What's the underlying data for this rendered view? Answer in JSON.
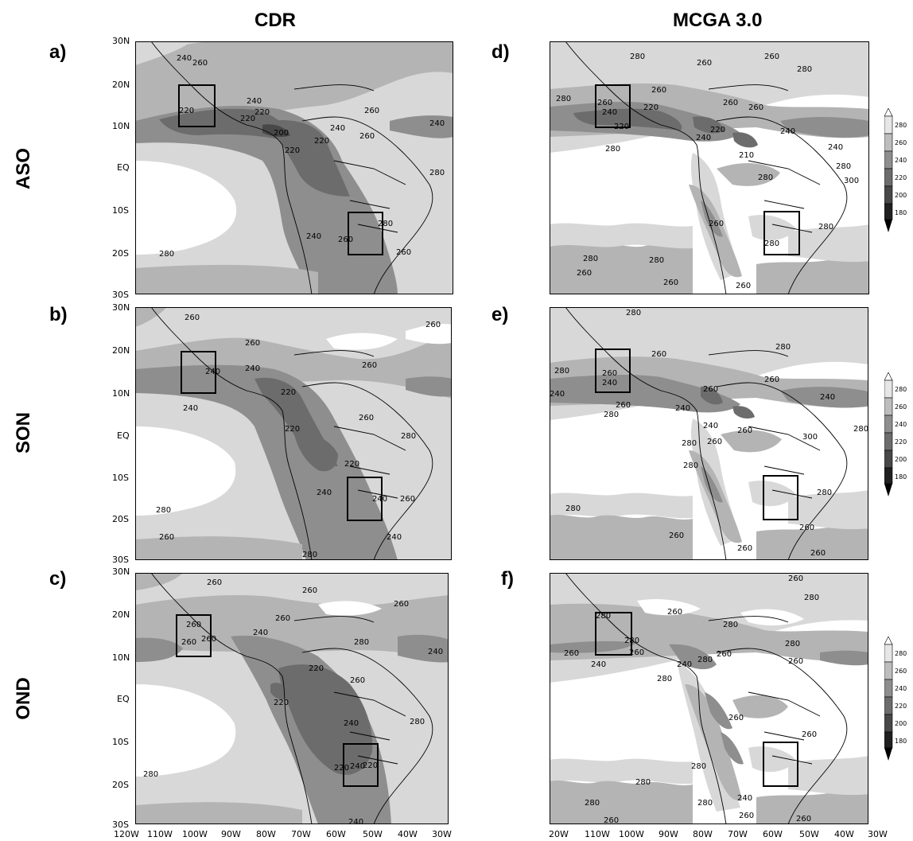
{
  "columns": [
    "CDR",
    "MCGA 3.0"
  ],
  "rows": [
    "ASO",
    "SON",
    "OND"
  ],
  "panel_labels": [
    "a)",
    "b)",
    "c)",
    "d)",
    "e)",
    "f)"
  ],
  "y_ticks": [
    "30N",
    "20N",
    "10N",
    "EQ",
    "10S",
    "20S",
    "30S"
  ],
  "x_ticks_left": [
    "120W",
    "110W",
    "100W",
    "90W",
    "80W",
    "70W",
    "60W",
    "50W",
    "40W",
    "30W"
  ],
  "x_ticks_right": [
    "20W",
    "110W",
    "100W",
    "90W",
    "80W",
    "70W",
    "60W",
    "50W",
    "40W",
    "30W"
  ],
  "colorbar_levels": [
    "280",
    "260",
    "240",
    "220",
    "200",
    "180"
  ],
  "colors": {
    "c300": "#ffffff",
    "c280": "#d8d8d8",
    "c260": "#b4b4b4",
    "c240": "#8e8e8e",
    "c220": "#6c6c6c",
    "c200": "#484848",
    "c180": "#202020"
  },
  "panels": [
    {
      "id": "a",
      "contour_labels": [
        "240",
        "260",
        "220",
        "240",
        "220",
        "220",
        "200",
        "220",
        "220",
        "240",
        "260",
        "240",
        "280",
        "240",
        "260",
        "280",
        "260",
        "280",
        "260"
      ]
    },
    {
      "id": "b",
      "contour_labels": [
        "260",
        "260",
        "260",
        "240",
        "240",
        "260",
        "220",
        "240",
        "220",
        "260",
        "280",
        "220",
        "240",
        "240",
        "260",
        "280",
        "260",
        "280",
        "240"
      ]
    },
    {
      "id": "c",
      "contour_labels": [
        "260",
        "260",
        "260",
        "260",
        "240",
        "260",
        "260",
        "240",
        "220",
        "260",
        "220",
        "240",
        "280",
        "280",
        "220",
        "240",
        "220",
        "260",
        "280",
        "240"
      ]
    },
    {
      "id": "d",
      "contour_labels": [
        "280",
        "260",
        "260",
        "280",
        "260",
        "240",
        "220",
        "260",
        "220",
        "260",
        "260",
        "240",
        "240",
        "280",
        "280",
        "220",
        "210",
        "240",
        "280",
        "280",
        "300",
        "280",
        "260",
        "280",
        "280",
        "280",
        "260",
        "260",
        "260"
      ]
    },
    {
      "id": "e",
      "contour_labels": [
        "280",
        "260",
        "280",
        "260",
        "240",
        "240",
        "260",
        "260",
        "280",
        "280",
        "240",
        "260",
        "240",
        "240",
        "260",
        "300",
        "280",
        "280",
        "260",
        "280",
        "280",
        "260",
        "260",
        "280",
        "260",
        "260"
      ]
    },
    {
      "id": "f",
      "contour_labels": [
        "260",
        "280",
        "260",
        "280",
        "240",
        "280",
        "260",
        "280",
        "260",
        "280",
        "240",
        "260",
        "280",
        "280",
        "260",
        "260",
        "280",
        "280",
        "260",
        "240",
        "280",
        "280",
        "260",
        "260",
        "260"
      ]
    }
  ]
}
